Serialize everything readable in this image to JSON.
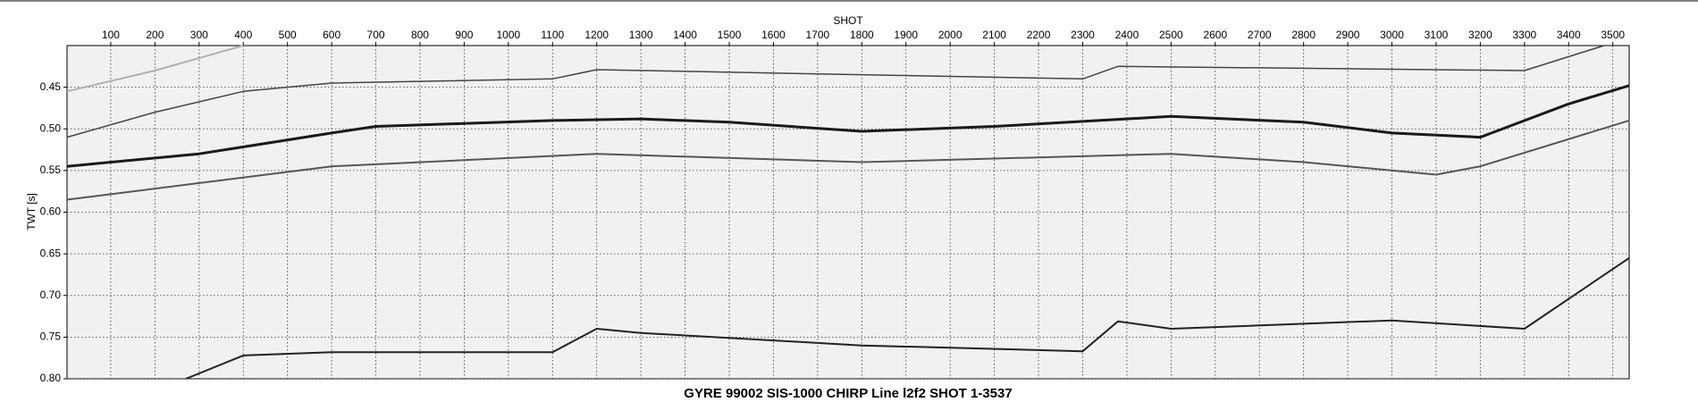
{
  "chart_data": {
    "type": "line",
    "title": "GYRE 99002 SIS-1000 CHIRP Line l2f2 SHOT 1-3537",
    "x_label": "SHOT",
    "y_label": "TWT [s]",
    "xlim": [
      1,
      3537
    ],
    "ylim": [
      0.8,
      0.4
    ],
    "xticks": [
      100,
      200,
      300,
      400,
      500,
      600,
      700,
      800,
      900,
      1000,
      1100,
      1200,
      1300,
      1400,
      1500,
      1600,
      1700,
      1800,
      1900,
      2000,
      2100,
      2200,
      2300,
      2400,
      2500,
      2600,
      2700,
      2800,
      2900,
      3000,
      3100,
      3200,
      3300,
      3400,
      3500
    ],
    "yticks": [
      0.45,
      {
        "value": 0.5,
        "label": "0.50"
      },
      0.55,
      {
        "value": 0.6,
        "label": "0.60"
      },
      0.65,
      {
        "value": 0.7,
        "label": "0.70"
      },
      0.75,
      {
        "value": 0.8,
        "label": "0.80"
      }
    ],
    "grid": true,
    "series": [
      {
        "color": "#b0b0b0",
        "width": 2,
        "x": [
          1,
          200,
          400
        ],
        "values": [
          0.455,
          0.43,
          0.4
        ]
      },
      {
        "color": "#444444",
        "width": 1.5,
        "x": [
          1,
          200,
          400,
          600,
          1100,
          1200,
          2300,
          2380,
          3300,
          3480
        ],
        "values": [
          0.51,
          0.48,
          0.455,
          0.445,
          0.44,
          0.429,
          0.44,
          0.425,
          0.43,
          0.4
        ]
      },
      {
        "color": "#1a1a1a",
        "width": 3,
        "x": [
          1,
          300,
          600,
          700,
          1100,
          1300,
          1500,
          1800,
          2100,
          2500,
          2800,
          3000,
          3200,
          3400,
          3537
        ],
        "values": [
          0.545,
          0.53,
          0.505,
          0.497,
          0.49,
          0.488,
          0.492,
          0.503,
          0.497,
          0.485,
          0.492,
          0.505,
          0.51,
          0.47,
          0.448
        ]
      },
      {
        "color": "#555555",
        "width": 2,
        "x": [
          1,
          600,
          1200,
          1800,
          2500,
          2800,
          3100,
          3200,
          3537
        ],
        "values": [
          0.585,
          0.545,
          0.53,
          0.54,
          0.53,
          0.54,
          0.555,
          0.545,
          0.49
        ]
      },
      {
        "color": "#222222",
        "width": 2,
        "x": [
          270,
          400,
          600,
          1100,
          1200,
          1300,
          1800,
          2300,
          2380,
          2500,
          3000,
          3300,
          3537
        ],
        "values": [
          0.8,
          0.772,
          0.768,
          0.768,
          0.74,
          0.745,
          0.76,
          0.767,
          0.731,
          0.74,
          0.73,
          0.74,
          0.655
        ]
      }
    ]
  }
}
